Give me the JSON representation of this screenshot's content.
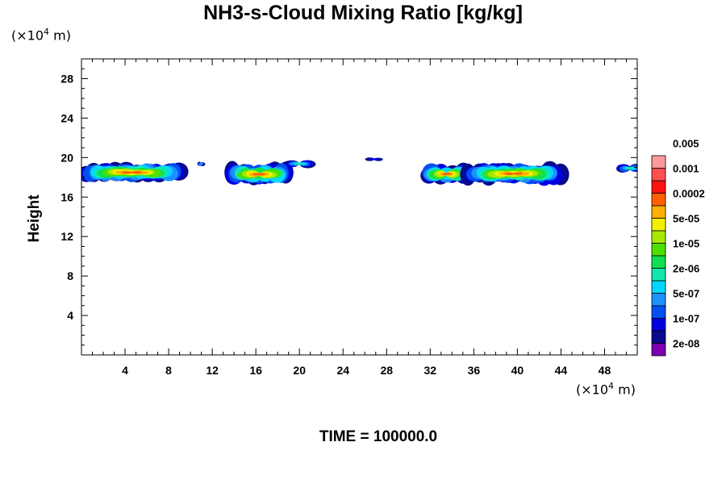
{
  "chart_data": {
    "type": "heatmap",
    "title": "NH3-s-Cloud Mixing Ratio [kg/kg]",
    "ylabel": "Height",
    "x_unit": {
      "prefix": "(×10",
      "exp": "4",
      "suffix": " m)"
    },
    "y_unit": {
      "prefix": "(×10",
      "exp": "4",
      "suffix": " m)"
    },
    "xlim": [
      0,
      51
    ],
    "ylim": [
      0,
      30
    ],
    "x_ticks": [
      4,
      8,
      12,
      16,
      20,
      24,
      28,
      32,
      36,
      40,
      44,
      48
    ],
    "y_ticks": [
      4,
      8,
      12,
      16,
      20,
      24,
      28
    ],
    "time_label": "TIME = 100000.0",
    "colorbar": {
      "colors": [
        "#7a00b0",
        "#0a0a8c",
        "#0000e0",
        "#0050f0",
        "#1e90ff",
        "#00d8ff",
        "#10e8b0",
        "#10e050",
        "#4ce000",
        "#a8e800",
        "#f0f000",
        "#ffb000",
        "#ff6000",
        "#ff1010",
        "#ff5050",
        "#ff9a9a"
      ],
      "labels": [
        {
          "text": "2e-08",
          "edge": 1
        },
        {
          "text": "1e-07",
          "edge": 3
        },
        {
          "text": "5e-07",
          "edge": 5
        },
        {
          "text": "2e-06",
          "edge": 7
        },
        {
          "text": "1e-05",
          "edge": 9
        },
        {
          "text": "5e-05",
          "edge": 11
        },
        {
          "text": "0.0002",
          "edge": 13
        },
        {
          "text": "0.001",
          "edge": 15
        },
        {
          "text": "0.005",
          "edge": 17
        }
      ]
    },
    "cloud_regions": [
      {
        "x": [
          0,
          9.2
        ],
        "y": [
          17.8,
          19.8
        ],
        "peak": "5e-05"
      },
      {
        "x": [
          10.8,
          11.1
        ],
        "y": [
          19.2,
          19.6
        ],
        "peak": "1e-07"
      },
      {
        "x": [
          13.8,
          18.8
        ],
        "y": [
          17.5,
          19.8
        ],
        "peak": "5e-05"
      },
      {
        "x": [
          19.2,
          20.8
        ],
        "y": [
          19.1,
          19.9
        ],
        "peak": "1e-06"
      },
      {
        "x": [
          26.4,
          27.3
        ],
        "y": [
          19.7,
          20.1
        ],
        "peak": "2e-08"
      },
      {
        "x": [
          31.8,
          35.2
        ],
        "y": [
          17.6,
          19.7
        ],
        "peak": "5e-05"
      },
      {
        "x": [
          35.3,
          44.0
        ],
        "y": [
          17.6,
          19.8
        ],
        "peak": "5e-05"
      },
      {
        "x": [
          49.6,
          51.0
        ],
        "y": [
          18.6,
          19.5
        ],
        "peak": "1e-06"
      }
    ]
  }
}
